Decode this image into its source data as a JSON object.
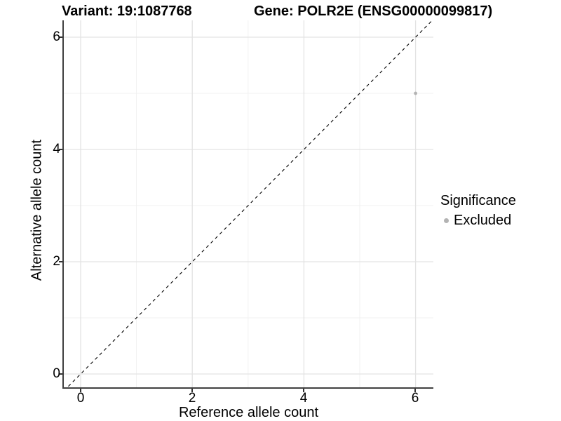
{
  "titles": {
    "variant": "Variant: 19:1087768",
    "gene": "Gene: POLR2E (ENSG00000099817)"
  },
  "chart_data": {
    "type": "scatter",
    "xlabel": "Reference allele count",
    "ylabel": "Alternative allele count",
    "x_ticks": [
      0,
      2,
      4,
      6
    ],
    "y_ticks": [
      0,
      2,
      4,
      6
    ],
    "x_tick_labels": [
      "0",
      "2",
      "4",
      "6"
    ],
    "y_tick_labels": [
      "0",
      "2",
      "4",
      "6"
    ],
    "x_minor_ticks": [
      1,
      3,
      5
    ],
    "y_minor_ticks": [
      1,
      3,
      5
    ],
    "xlim": [
      -0.3,
      6.3
    ],
    "ylim": [
      -0.3,
      6.3
    ],
    "grid": true,
    "points": [
      {
        "x": 6,
        "y": 5,
        "series": "Excluded"
      }
    ],
    "reference_line": {
      "kind": "identity y=x",
      "style": "dashed",
      "color": "#000000"
    },
    "legend": {
      "position": "right",
      "title": "Significance",
      "items": [
        {
          "label": "Excluded",
          "color": "#b3b3b3"
        }
      ]
    },
    "colors": {
      "point": "#b3b3b3",
      "grid_major": "#e3e3e3",
      "grid_minor": "#f0f0f0",
      "axis": "#404040",
      "background": "#ffffff"
    }
  }
}
